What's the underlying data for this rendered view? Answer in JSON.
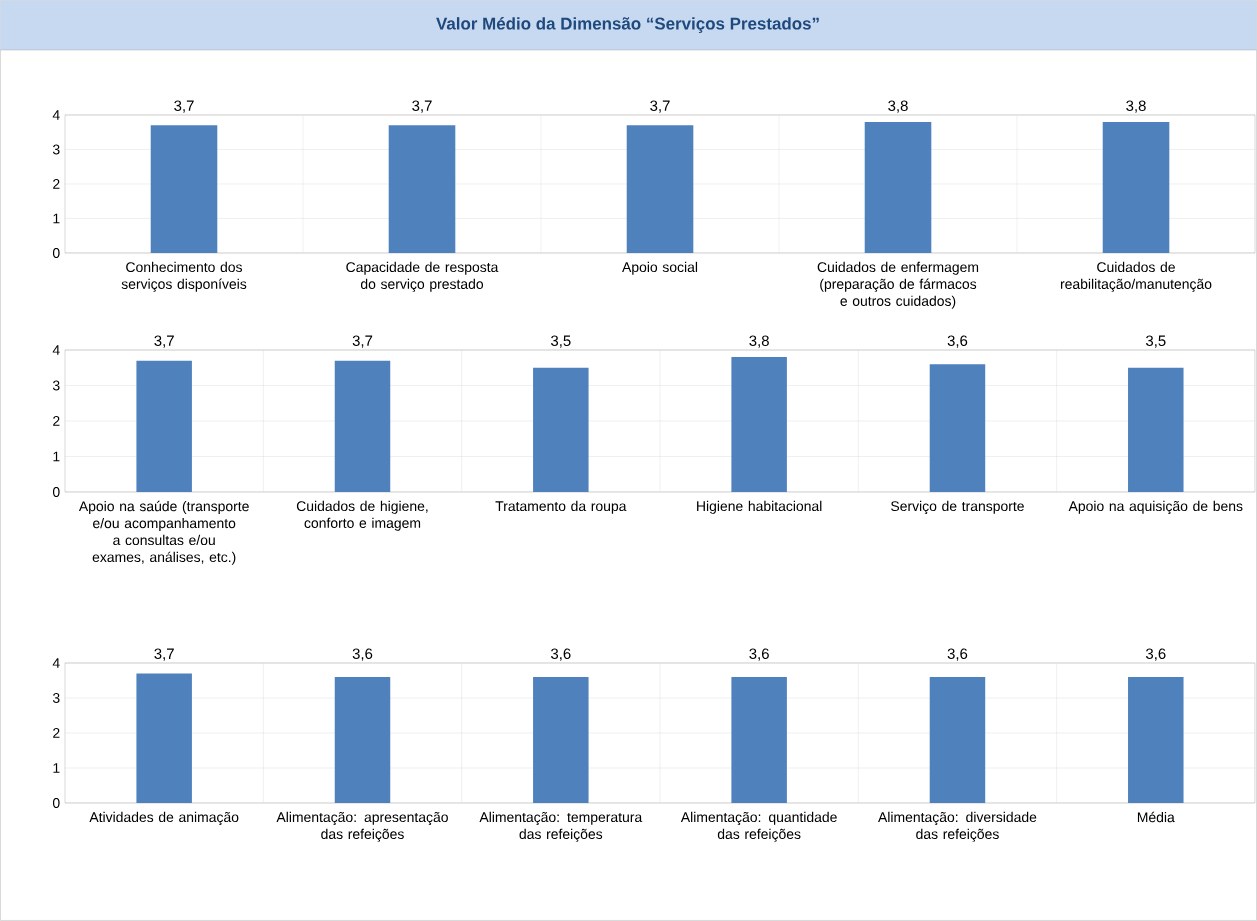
{
  "chart_data": [
    {
      "type": "bar",
      "title": "Valor Médio da Dimensão “Serviços Prestados”",
      "categories": [
        "Conhecimento dos serviços disponíveis",
        "Capacidade de resposta do serviço prestado",
        "Apoio social",
        "Cuidados de enfermagem (preparação de fármacos e outros cuidados)",
        "Cuidados de reabilitação/manutenção"
      ],
      "values": [
        3.7,
        3.7,
        3.7,
        3.8,
        3.8
      ],
      "value_labels": [
        "3,7",
        "3,7",
        "3,7",
        "3,8",
        "3,8"
      ],
      "color": "#4f81bd",
      "ylim": [
        0,
        4
      ],
      "yticks": [
        0,
        1,
        2,
        3,
        4
      ],
      "grid": true
    },
    {
      "type": "bar",
      "categories": [
        "Apoio na saúde (transporte e/ou acompanhamento a consultas e/ou exames, análises, etc.)",
        "Cuidados de higiene, conforto e imagem",
        "Tratamento da roupa",
        "Higiene habitacional",
        "Serviço de transporte",
        "Apoio na aquisição de bens"
      ],
      "values": [
        3.7,
        3.7,
        3.5,
        3.8,
        3.6,
        3.5
      ],
      "value_labels": [
        "3,7",
        "3,7",
        "3,5",
        "3,8",
        "3,6",
        "3,5"
      ],
      "color": "#4f81bd",
      "ylim": [
        0,
        4
      ],
      "yticks": [
        0,
        1,
        2,
        3,
        4
      ],
      "grid": true
    },
    {
      "type": "bar",
      "categories": [
        "Atividades de animação",
        "Alimentação: apresentação das refeições",
        "Alimentação: temperatura das refeições",
        "Alimentação: quantidade das refeições",
        "Alimentação: diversidade das refeições",
        "Média"
      ],
      "values": [
        3.7,
        3.6,
        3.6,
        3.6,
        3.6,
        3.6
      ],
      "value_labels": [
        "3,7",
        "3,6",
        "3,6",
        "3,6",
        "3,6",
        "3,6"
      ],
      "color": "#4f81bd",
      "ylim": [
        0,
        4
      ],
      "yticks": [
        0,
        1,
        2,
        3,
        4
      ],
      "grid": true
    }
  ]
}
